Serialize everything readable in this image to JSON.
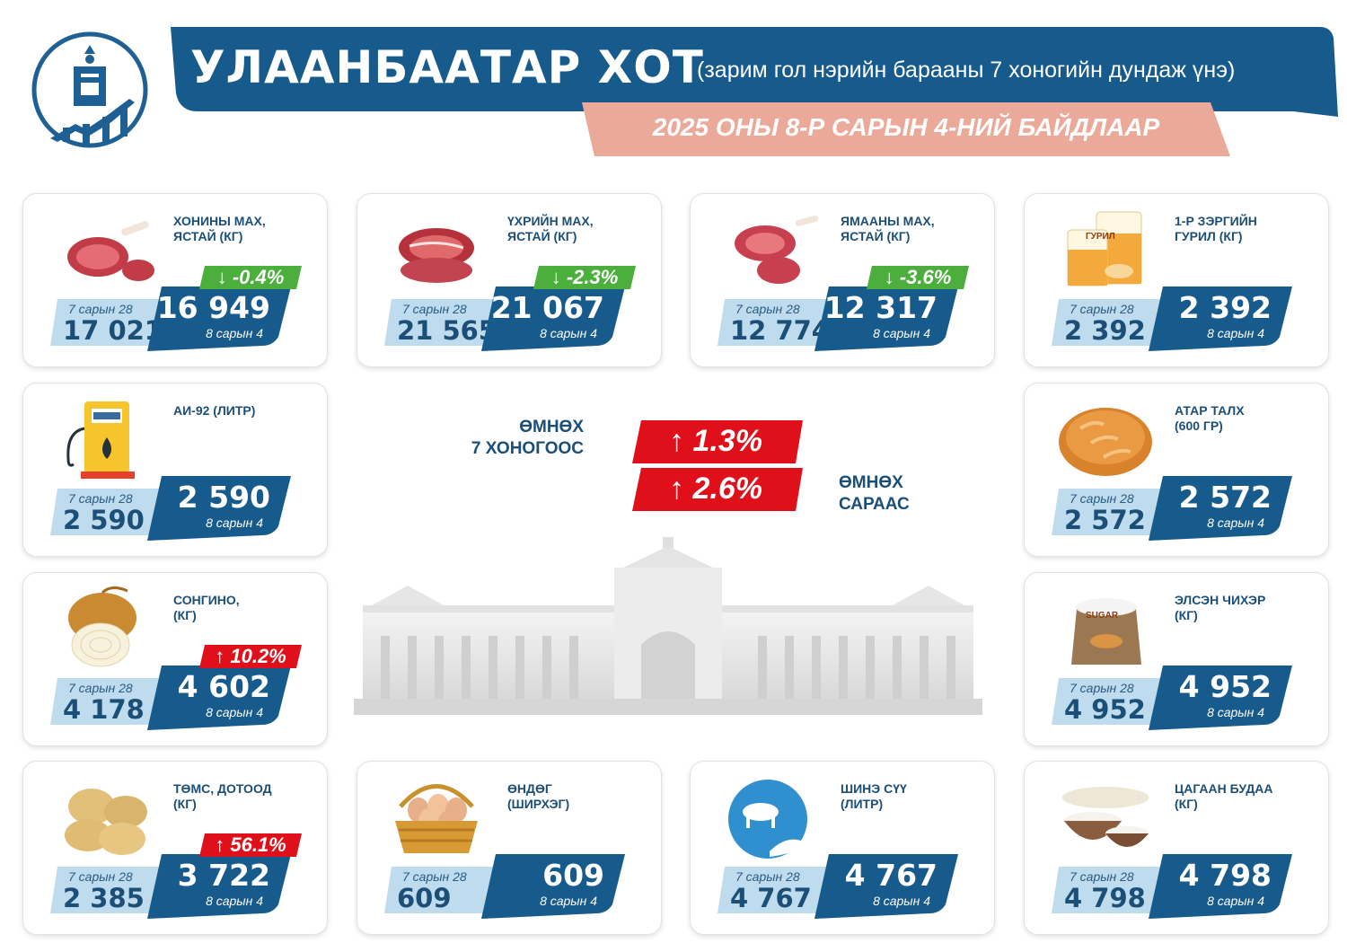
{
  "header": {
    "title": "УЛААНБААТАР ХОТ",
    "subtitle": "(зарим гол нэрийн барааны 7 хоногийн дундаж үнэ)",
    "date": "2025 ОНЫ 8-Р САРЫН 4-НИЙ БАЙДЛААР"
  },
  "colors": {
    "navy": "#175a8c",
    "light_blue": "#bfdcee",
    "salmon": "#eba99a",
    "green": "#4cae3c",
    "red": "#e0101a"
  },
  "summary": {
    "week_label": "ӨМНӨХ\n7 ХОНОГООС",
    "week_change": "↑ 1.3%",
    "month_label": "ӨМНӨХ\nСАРААС",
    "month_change": "↑ 2.6%"
  },
  "items": [
    {
      "name": "ХОНИНЫ МАХ,\nЯСТАЙ (КГ)",
      "icon": "mutton-icon",
      "old_label": "7 сарын 28",
      "old_value": "17 021",
      "new_value": "16 949",
      "new_label": "8 сарын 4",
      "change": "↓ -0.4%",
      "direction": "down"
    },
    {
      "name": "ҮХРИЙН МАХ,\nЯСТАЙ (КГ)",
      "icon": "beef-icon",
      "old_label": "7 сарын 28",
      "old_value": "21 565",
      "new_value": "21 067",
      "new_label": "8 сарын 4",
      "change": "↓ -2.3%",
      "direction": "down"
    },
    {
      "name": "ЯМААНЫ МАХ,\nЯСТАЙ (КГ)",
      "icon": "goat-meat-icon",
      "old_label": "7 сарын 28",
      "old_value": "12 774",
      "new_value": "12 317",
      "new_label": "8 сарын 4",
      "change": "↓ -3.6%",
      "direction": "down"
    },
    {
      "name": "1-Р ЗЭРГИЙН\nГУРИЛ (КГ)",
      "icon": "flour-icon",
      "icon_text": "ГУРИЛ",
      "old_label": "7 сарын 28",
      "old_value": "2 392",
      "new_value": "2 392",
      "new_label": "8 сарын 4",
      "change": "",
      "direction": "none"
    },
    {
      "name": "АИ-92 (ЛИТР)",
      "icon": "fuel-pump-icon",
      "old_label": "7 сарын 28",
      "old_value": "2 590",
      "new_value": "2 590",
      "new_label": "8 сарын 4",
      "change": "",
      "direction": "none"
    },
    {
      "name": "АТАР ТАЛХ\n (600 ГР)",
      "icon": "bread-icon",
      "old_label": "7 сарын 28",
      "old_value": "2 572",
      "new_value": "2 572",
      "new_label": "8 сарын 4",
      "change": "",
      "direction": "none"
    },
    {
      "name": "СОНГИНО,\n(КГ)",
      "icon": "onion-icon",
      "old_label": "7 сарын 28",
      "old_value": "4 178",
      "new_value": "4 602",
      "new_label": "8 сарын 4",
      "change": "↑ 10.2%",
      "direction": "up"
    },
    {
      "name": "ЭЛСЭН ЧИХЭР\n(КГ)",
      "icon": "sugar-sack-icon",
      "icon_text": "SUGAR",
      "old_label": "7 сарын 28",
      "old_value": "4 952",
      "new_value": "4 952",
      "new_label": "8 сарын 4",
      "change": "",
      "direction": "none"
    },
    {
      "name": "ТӨМС, ДОТООД\n(КГ)",
      "icon": "potato-icon",
      "old_label": "7 сарын 28",
      "old_value": "2 385",
      "new_value": "3 722",
      "new_label": "8 сарын 4",
      "change": "↑ 56.1%",
      "direction": "up"
    },
    {
      "name": "ӨНДӨГ\n(ШИРХЭГ)",
      "icon": "egg-basket-icon",
      "old_label": "7 сарын 28",
      "old_value": "609",
      "new_value": "609",
      "new_label": "8 сарын 4",
      "change": "",
      "direction": "none"
    },
    {
      "name": "ШИНЭ СҮҮ\n(ЛИТР)",
      "icon": "milk-icon",
      "old_label": "7 сарын 28",
      "old_value": "4 767",
      "new_value": "4 767",
      "new_label": "8 сарын 4",
      "change": "",
      "direction": "none"
    },
    {
      "name": "ЦАГААН БУДАА\n(КГ)",
      "icon": "rice-icon",
      "old_label": "7 сарын 28",
      "old_value": "4 798",
      "new_value": "4 798",
      "new_label": "8 сарын 4",
      "change": "",
      "direction": "none"
    }
  ]
}
